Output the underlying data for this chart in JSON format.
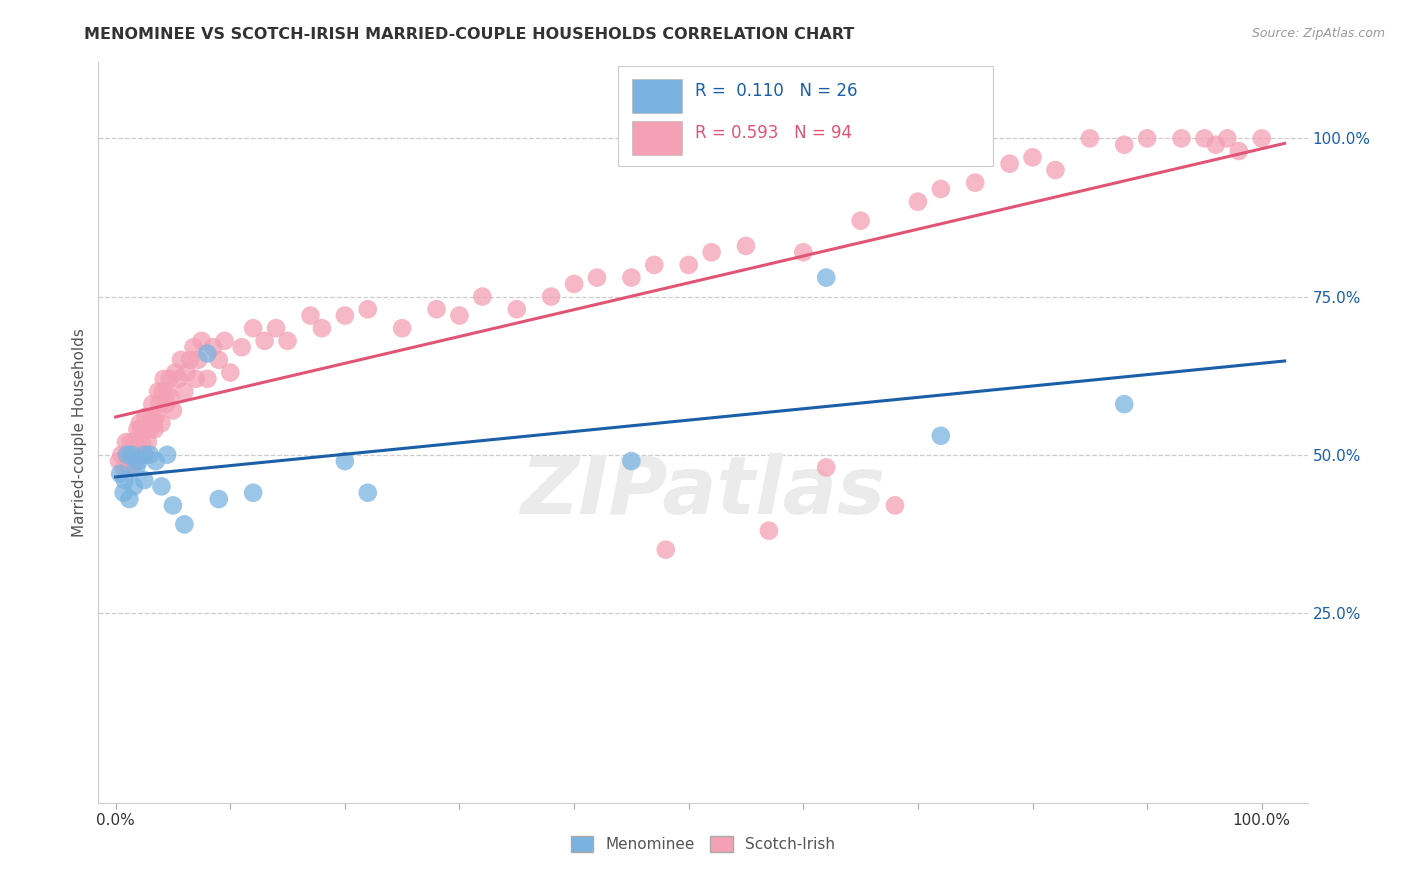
{
  "title": "MENOMINEE VS SCOTCH-IRISH MARRIED-COUPLE HOUSEHOLDS CORRELATION CHART",
  "source": "Source: ZipAtlas.com",
  "ylabel_text": "Married-couple Households",
  "watermark": "ZIPatlas",
  "legend_blue_label": "Menominee",
  "legend_pink_label": "Scotch-Irish",
  "blue_R": "0.110",
  "blue_N": "26",
  "pink_R": "0.593",
  "pink_N": "94",
  "blue_color": "#7ab3e0",
  "pink_color": "#f4a0b5",
  "blue_line_color": "#1a5fa8",
  "pink_line_color": "#e05575",
  "background_color": "#ffffff",
  "grid_color": "#cccccc",
  "blue_scatter_x": [
    0.004,
    0.007,
    0.008,
    0.01,
    0.012,
    0.014,
    0.016,
    0.018,
    0.02,
    0.025,
    0.025,
    0.03,
    0.035,
    0.04,
    0.045,
    0.05,
    0.06,
    0.08,
    0.09,
    0.12,
    0.2,
    0.22,
    0.45,
    0.62,
    0.72,
    0.88
  ],
  "blue_scatter_y": [
    0.47,
    0.44,
    0.46,
    0.5,
    0.43,
    0.5,
    0.45,
    0.48,
    0.49,
    0.5,
    0.46,
    0.5,
    0.49,
    0.45,
    0.5,
    0.42,
    0.39,
    0.66,
    0.43,
    0.44,
    0.49,
    0.44,
    0.49,
    0.78,
    0.53,
    0.58
  ],
  "pink_scatter_x": [
    0.003,
    0.005,
    0.007,
    0.009,
    0.01,
    0.012,
    0.013,
    0.015,
    0.016,
    0.017,
    0.018,
    0.019,
    0.02,
    0.021,
    0.022,
    0.023,
    0.025,
    0.026,
    0.027,
    0.028,
    0.03,
    0.031,
    0.032,
    0.033,
    0.034,
    0.035,
    0.037,
    0.038,
    0.04,
    0.041,
    0.042,
    0.044,
    0.045,
    0.047,
    0.048,
    0.05,
    0.052,
    0.055,
    0.057,
    0.06,
    0.062,
    0.065,
    0.068,
    0.07,
    0.072,
    0.075,
    0.08,
    0.085,
    0.09,
    0.095,
    0.1,
    0.11,
    0.12,
    0.13,
    0.14,
    0.15,
    0.17,
    0.18,
    0.2,
    0.22,
    0.25,
    0.28,
    0.3,
    0.32,
    0.35,
    0.38,
    0.4,
    0.42,
    0.45,
    0.47,
    0.48,
    0.5,
    0.52,
    0.55,
    0.57,
    0.6,
    0.62,
    0.65,
    0.68,
    0.7,
    0.72,
    0.75,
    0.78,
    0.8,
    0.82,
    0.85,
    0.88,
    0.9,
    0.93,
    0.95,
    0.96,
    0.97,
    0.98,
    1.0
  ],
  "pink_scatter_y": [
    0.49,
    0.5,
    0.48,
    0.52,
    0.5,
    0.48,
    0.52,
    0.48,
    0.5,
    0.52,
    0.5,
    0.54,
    0.5,
    0.55,
    0.54,
    0.52,
    0.5,
    0.56,
    0.54,
    0.52,
    0.54,
    0.56,
    0.58,
    0.55,
    0.54,
    0.56,
    0.6,
    0.58,
    0.55,
    0.6,
    0.62,
    0.58,
    0.6,
    0.62,
    0.59,
    0.57,
    0.63,
    0.62,
    0.65,
    0.6,
    0.63,
    0.65,
    0.67,
    0.62,
    0.65,
    0.68,
    0.62,
    0.67,
    0.65,
    0.68,
    0.63,
    0.67,
    0.7,
    0.68,
    0.7,
    0.68,
    0.72,
    0.7,
    0.72,
    0.73,
    0.7,
    0.73,
    0.72,
    0.75,
    0.73,
    0.75,
    0.77,
    0.78,
    0.78,
    0.8,
    0.35,
    0.8,
    0.82,
    0.83,
    0.38,
    0.82,
    0.48,
    0.87,
    0.42,
    0.9,
    0.92,
    0.93,
    0.96,
    0.97,
    0.95,
    1.0,
    0.99,
    1.0,
    1.0,
    1.0,
    0.99,
    1.0,
    0.98,
    1.0
  ]
}
